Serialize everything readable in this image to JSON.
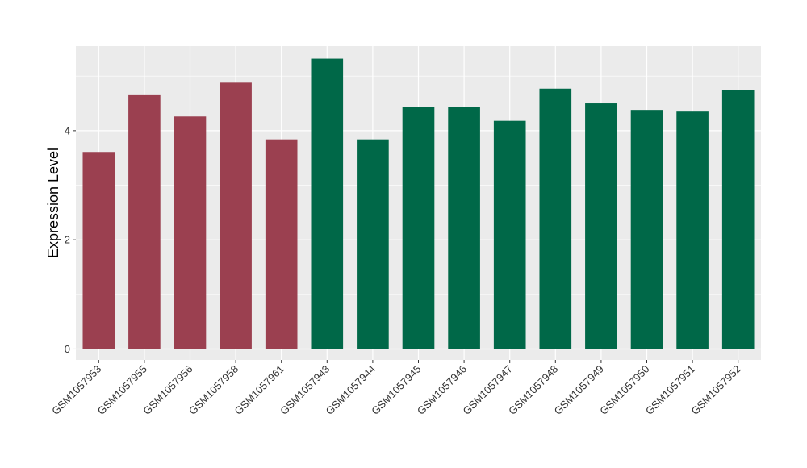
{
  "chart_data": {
    "type": "bar",
    "title": "",
    "xlabel": "",
    "ylabel": "Expression Level",
    "ylim": [
      -0.2,
      5.55
    ],
    "yticks": [
      0,
      2,
      4
    ],
    "grid": true,
    "legend": "none",
    "colors": {
      "group1": "#9B4050",
      "group2": "#006848",
      "panel": "#EBEBEB",
      "grid": "#FFFFFF"
    },
    "categories": [
      "GSM1057953",
      "GSM1057955",
      "GSM1057956",
      "GSM1057958",
      "GSM1057961",
      "GSM1057943",
      "GSM1057944",
      "GSM1057945",
      "GSM1057946",
      "GSM1057947",
      "GSM1057948",
      "GSM1057949",
      "GSM1057950",
      "GSM1057951",
      "GSM1057952"
    ],
    "values": [
      3.61,
      4.65,
      4.26,
      4.88,
      3.84,
      5.32,
      3.84,
      4.44,
      4.44,
      4.18,
      4.77,
      4.5,
      4.38,
      4.35,
      4.75
    ],
    "groups": [
      "group1",
      "group1",
      "group1",
      "group1",
      "group1",
      "group2",
      "group2",
      "group2",
      "group2",
      "group2",
      "group2",
      "group2",
      "group2",
      "group2",
      "group2"
    ]
  }
}
